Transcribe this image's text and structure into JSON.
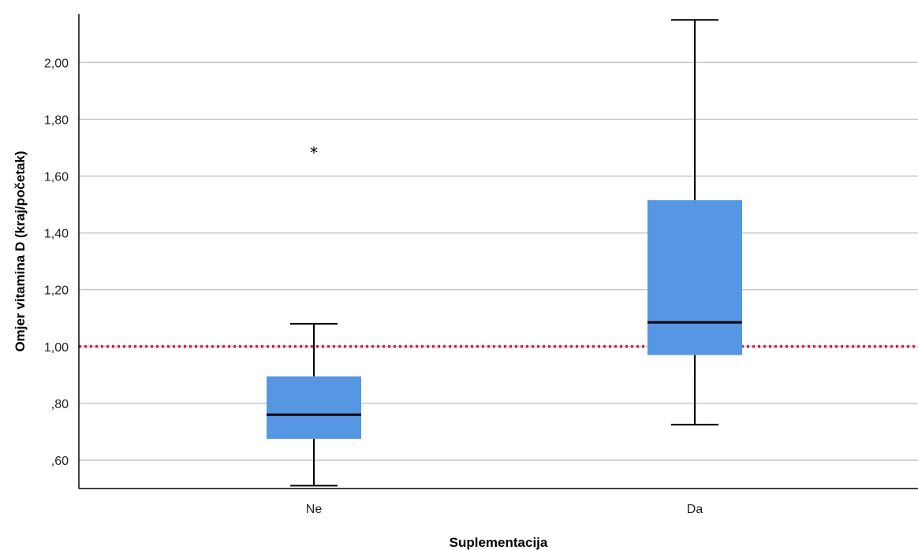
{
  "chart_data": {
    "type": "box",
    "title": "",
    "xlabel": "Suplementacija",
    "ylabel": "Omjer vitamina D (kraj/početak)",
    "ylim": [
      0.5,
      2.17
    ],
    "yticks": [
      {
        "value": 0.6,
        "label": ",60"
      },
      {
        "value": 0.8,
        "label": ",80"
      },
      {
        "value": 1.0,
        "label": "1,00"
      },
      {
        "value": 1.2,
        "label": "1,20"
      },
      {
        "value": 1.4,
        "label": "1,40"
      },
      {
        "value": 1.6,
        "label": "1,60"
      },
      {
        "value": 1.8,
        "label": "1,80"
      },
      {
        "value": 2.0,
        "label": "2,00"
      }
    ],
    "grid": true,
    "categories": [
      "Ne",
      "Da"
    ],
    "boxes": [
      {
        "category": "Ne",
        "min": 0.51,
        "q1": 0.675,
        "median": 0.76,
        "q3": 0.895,
        "max": 1.08,
        "outliers": [
          {
            "value": 1.69,
            "marker": "*"
          }
        ]
      },
      {
        "category": "Da",
        "min": 0.725,
        "q1": 0.97,
        "median": 1.085,
        "q3": 1.515,
        "max": 2.15,
        "outliers": []
      }
    ],
    "reference_line": {
      "value": 1.0,
      "style": "dotted",
      "color": "#d81e4a"
    },
    "colors": {
      "box_fill": "#5597e3",
      "median": "#000000",
      "whisker": "#000000",
      "grid": "#c8c8c8",
      "axis": "#000000"
    }
  }
}
